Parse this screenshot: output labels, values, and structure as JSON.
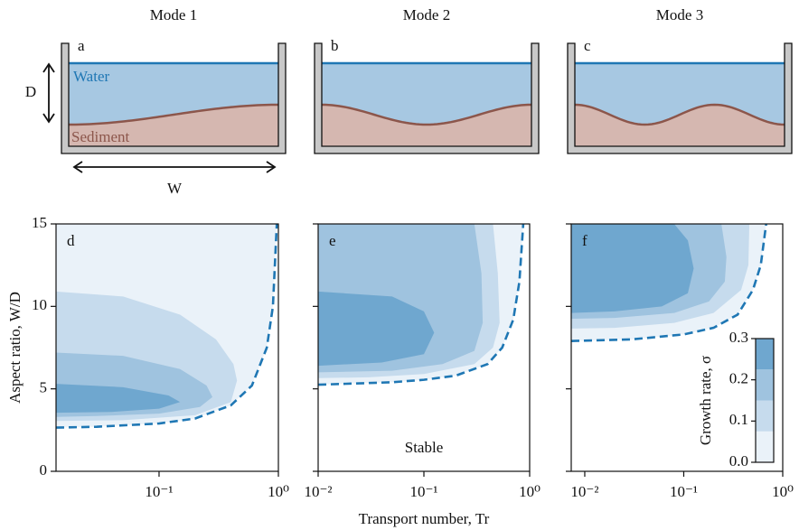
{
  "schematic": {
    "titles": [
      "Mode 1",
      "Mode 2",
      "Mode 3"
    ],
    "labels": [
      "a",
      "b",
      "c"
    ],
    "water": "Water",
    "sediment": "Sediment",
    "depth": "D",
    "width": "W"
  },
  "chart_data": [
    {
      "type": "contour",
      "label": "d",
      "ylabel": "Aspect ratio, W/D",
      "xlim": [
        0.0137,
        1
      ],
      "ylim": [
        0,
        15
      ],
      "log_x": true,
      "xticks": [
        {
          "value": 0.1,
          "label": "10⁻¹"
        },
        {
          "value": 1,
          "label": "10⁰"
        }
      ],
      "yticks": [
        0,
        5,
        10,
        15
      ],
      "show_ytick_labels": true,
      "neutral_curve": {
        "color": "#1f77b4",
        "x": [
          0.0137,
          0.03,
          0.1,
          0.2,
          0.4,
          0.6,
          0.8,
          0.9,
          0.97
        ],
        "y": [
          2.65,
          2.7,
          2.9,
          3.2,
          4.0,
          5.2,
          7.5,
          10,
          15
        ]
      },
      "contours": [
        {
          "level": 0.075,
          "x": [
            0.0137,
            0.05,
            0.15,
            0.3,
            0.42,
            0.45,
            0.4,
            0.2,
            0.05,
            0.0137
          ],
          "y": [
            10.9,
            10.6,
            9.5,
            8,
            6.5,
            5.5,
            4.2,
            3.4,
            3.1,
            3.05
          ]
        },
        {
          "level": 0.15,
          "x": [
            0.0137,
            0.05,
            0.15,
            0.25,
            0.28,
            0.22,
            0.1,
            0.03,
            0.0137
          ],
          "y": [
            7.2,
            7.0,
            6.2,
            5.2,
            4.5,
            3.9,
            3.5,
            3.35,
            3.3
          ]
        },
        {
          "level": 0.225,
          "x": [
            0.0137,
            0.05,
            0.12,
            0.15,
            0.1,
            0.04,
            0.0137
          ],
          "y": [
            5.3,
            5.1,
            4.6,
            4.2,
            3.8,
            3.6,
            3.55
          ]
        }
      ]
    },
    {
      "type": "contour",
      "label": "e",
      "xlabel": "Transport number, Tr",
      "annotation": "Stable",
      "xlim": [
        0.01,
        1
      ],
      "ylim": [
        0,
        15
      ],
      "log_x": true,
      "xticks": [
        {
          "value": 0.01,
          "label": "10⁻²"
        },
        {
          "value": 0.1,
          "label": "10⁻¹"
        },
        {
          "value": 1,
          "label": "10⁰"
        }
      ],
      "yticks": [
        0,
        5,
        10,
        15
      ],
      "show_ytick_labels": false,
      "neutral_curve": {
        "color": "#1f77b4",
        "x": [
          0.01,
          0.05,
          0.1,
          0.2,
          0.4,
          0.55,
          0.7,
          0.8,
          0.87
        ],
        "y": [
          5.25,
          5.4,
          5.55,
          5.8,
          6.5,
          7.5,
          9.2,
          11.5,
          15
        ]
      },
      "contours": [
        {
          "level": 0.075,
          "x": [
            0.45,
            0.5,
            0.52,
            0.45,
            0.3,
            0.1,
            0.03,
            0.01
          ],
          "y": [
            15,
            12,
            9,
            7.5,
            6.5,
            5.9,
            5.7,
            5.65
          ]
        },
        {
          "level": 0.15,
          "x": [
            0.3,
            0.35,
            0.36,
            0.3,
            0.15,
            0.05,
            0.01
          ],
          "y": [
            15,
            12,
            9,
            7.3,
            6.5,
            6.1,
            6.0
          ]
        },
        {
          "level": 0.225,
          "x": [
            0.01,
            0.05,
            0.1,
            0.125,
            0.1,
            0.04,
            0.01
          ],
          "y": [
            10.9,
            10.6,
            9.7,
            8.4,
            7.1,
            6.6,
            6.4
          ]
        }
      ]
    },
    {
      "type": "contour",
      "label": "f",
      "xlim": [
        0.0073,
        1
      ],
      "ylim": [
        0,
        15
      ],
      "log_x": true,
      "xticks": [
        {
          "value": 0.01,
          "label": "10⁻²"
        },
        {
          "value": 0.1,
          "label": "10⁻¹"
        },
        {
          "value": 1,
          "label": "10⁰"
        }
      ],
      "yticks": [
        0,
        5,
        10,
        15
      ],
      "show_ytick_labels": false,
      "neutral_curve": {
        "color": "#1f77b4",
        "x": [
          0.0073,
          0.03,
          0.1,
          0.2,
          0.35,
          0.5,
          0.6,
          0.68
        ],
        "y": [
          7.9,
          8.0,
          8.3,
          8.7,
          9.5,
          11,
          12.5,
          15
        ]
      },
      "contours": [
        {
          "level": 0.075,
          "x": [
            0.46,
            0.45,
            0.38,
            0.2,
            0.08,
            0.02,
            0.0073
          ],
          "y": [
            15,
            12.5,
            11,
            9.6,
            9.0,
            8.7,
            8.65
          ]
        },
        {
          "level": 0.15,
          "x": [
            0.24,
            0.27,
            0.26,
            0.18,
            0.08,
            0.02,
            0.0073
          ],
          "y": [
            15,
            13,
            11.5,
            10.3,
            9.6,
            9.3,
            9.25
          ]
        },
        {
          "level": 0.225,
          "x": [
            0.08,
            0.11,
            0.126,
            0.11,
            0.06,
            0.02,
            0.0073
          ],
          "y": [
            15,
            14,
            12.3,
            10.8,
            10,
            9.7,
            9.6
          ]
        }
      ],
      "colorbar": {
        "label": "Growth rate, σ",
        "levels": [
          0,
          0.075,
          0.15,
          0.225,
          0.3
        ],
        "colors": [
          "#eaf2f9",
          "#c6dbed",
          "#9fc3df",
          "#6fa7cf"
        ],
        "ticks": [
          {
            "value": 0,
            "label": "0.0"
          },
          0.1,
          0.2,
          0.3
        ]
      }
    }
  ]
}
